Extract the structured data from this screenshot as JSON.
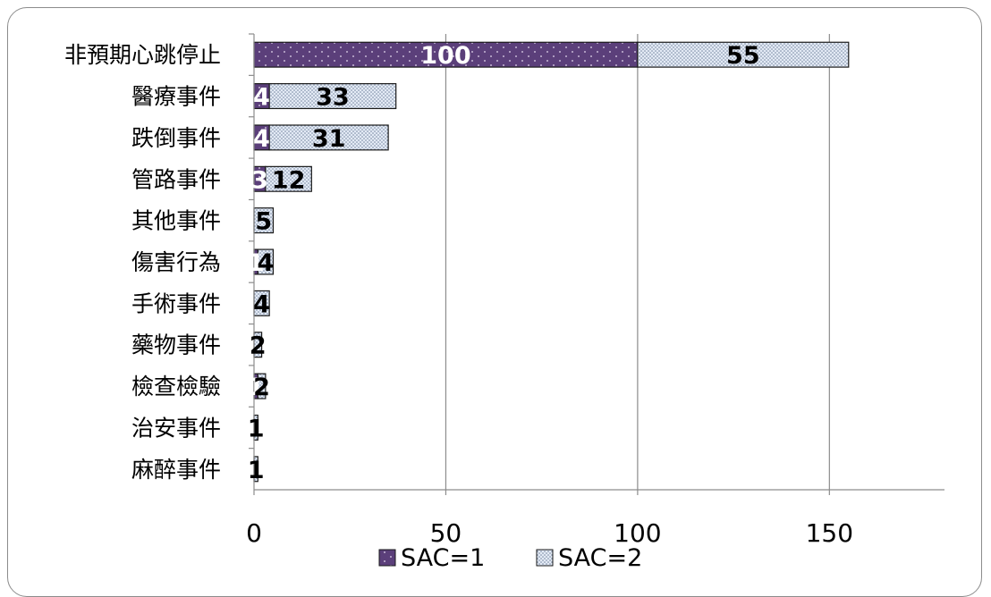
{
  "chart_data": {
    "type": "bar",
    "orientation": "horizontal",
    "stacked": true,
    "categories": [
      "非預期心跳停止",
      "醫療事件",
      "跌倒事件",
      "管路事件",
      "其他事件",
      "傷害行為",
      "手術事件",
      "藥物事件",
      "檢查檢驗",
      "治安事件",
      "麻醉事件"
    ],
    "series": [
      {
        "name": "SAC=1",
        "values": [
          100,
          4,
          4,
          3,
          0,
          1,
          0,
          0,
          1,
          0,
          0
        ],
        "color": "#5b3f7a"
      },
      {
        "name": "SAC=2",
        "values": [
          55,
          33,
          31,
          12,
          5,
          4,
          4,
          2,
          2,
          1,
          1
        ],
        "color": "#dfe6f2"
      }
    ],
    "xlim": [
      0,
      180
    ],
    "xticks": [
      "0",
      "50",
      "100",
      "150"
    ],
    "xtick_values": [
      0,
      50,
      100,
      150
    ],
    "grid": true,
    "legend": "bottom",
    "title": "",
    "xlabel": "",
    "ylabel": ""
  }
}
